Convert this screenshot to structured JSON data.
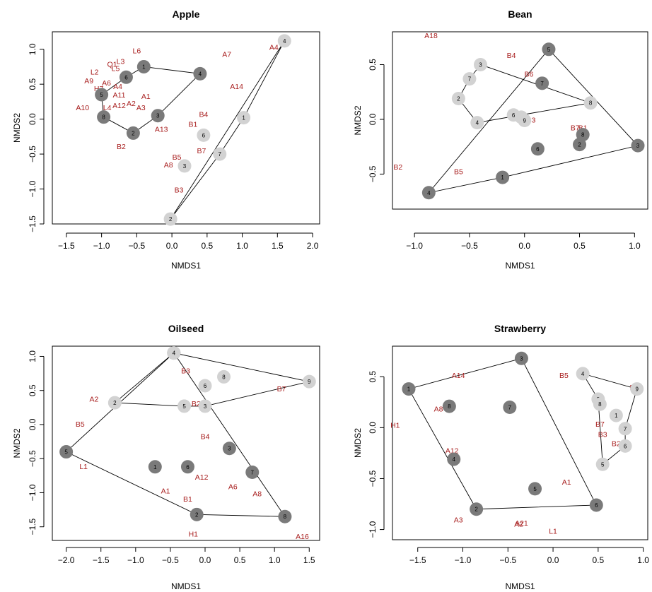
{
  "chart_data": [
    {
      "type": "scatter",
      "title": "Apple",
      "xlabel": "NMDS1",
      "ylabel": "NMDS2",
      "xlim": [
        -1.7,
        2.1
      ],
      "ylim": [
        -1.5,
        1.25
      ],
      "xticks": [
        {
          "v": -1.5,
          "t": "−1.5"
        },
        {
          "v": -1.0,
          "t": "−1.0"
        },
        {
          "v": -0.5,
          "t": "−0.5"
        },
        {
          "v": 0.0,
          "t": "0.0"
        },
        {
          "v": 0.5,
          "t": "0.5"
        },
        {
          "v": 1.0,
          "t": "1.0"
        },
        {
          "v": 1.5,
          "t": "1.5"
        },
        {
          "v": 2.0,
          "t": "2.0"
        }
      ],
      "yticks": [
        {
          "v": -1.5,
          "t": "−1.5"
        },
        {
          "v": -1.0,
          "t": "−1.0"
        },
        {
          "v": -0.5,
          "t": "−0.5"
        },
        {
          "v": 0.0,
          "t": "0.0"
        },
        {
          "v": 0.5,
          "t": "0.5"
        },
        {
          "v": 1.0,
          "t": "1.0"
        }
      ],
      "site_groups": [
        {
          "color": "#7a7a7a",
          "hull": [
            1,
            4,
            3,
            2,
            8,
            5,
            6
          ],
          "points": [
            {
              "id": "1",
              "x": -0.4,
              "y": 0.75
            },
            {
              "id": "2",
              "x": -0.55,
              "y": -0.2
            },
            {
              "id": "3",
              "x": -0.2,
              "y": 0.05
            },
            {
              "id": "4",
              "x": 0.4,
              "y": 0.65
            },
            {
              "id": "5",
              "x": -1.0,
              "y": 0.35
            },
            {
              "id": "6",
              "x": -0.65,
              "y": 0.6
            },
            {
              "id": "8",
              "x": -0.97,
              "y": 0.03
            }
          ]
        },
        {
          "color": "#d2d2d2",
          "hull": [
            4,
            1,
            7,
            2
          ],
          "points": [
            {
              "id": "1",
              "x": 1.02,
              "y": 0.02
            },
            {
              "id": "2",
              "x": -0.02,
              "y": -1.43
            },
            {
              "id": "3",
              "x": 0.18,
              "y": -0.67
            },
            {
              "id": "4",
              "x": 1.6,
              "y": 1.12
            },
            {
              "id": "6",
              "x": 0.45,
              "y": -0.23
            },
            {
              "id": "7",
              "x": 0.68,
              "y": -0.5
            }
          ]
        }
      ],
      "species": [
        {
          "label": "L6",
          "x": -0.5,
          "y": 0.97
        },
        {
          "label": "L3",
          "x": -0.73,
          "y": 0.82
        },
        {
          "label": "Q1",
          "x": -0.85,
          "y": 0.78
        },
        {
          "label": "L5",
          "x": -0.8,
          "y": 0.72
        },
        {
          "label": "L2",
          "x": -1.1,
          "y": 0.67
        },
        {
          "label": "A9",
          "x": -1.18,
          "y": 0.54
        },
        {
          "label": "A6",
          "x": -0.93,
          "y": 0.51
        },
        {
          "label": "A4",
          "x": -0.77,
          "y": 0.46
        },
        {
          "label": "H7",
          "x": -1.04,
          "y": 0.43
        },
        {
          "label": "A11",
          "x": -0.75,
          "y": 0.34
        },
        {
          "label": "A1",
          "x": -0.37,
          "y": 0.32
        },
        {
          "label": "A10",
          "x": -1.27,
          "y": 0.16
        },
        {
          "label": "L4",
          "x": -0.92,
          "y": 0.16
        },
        {
          "label": "A12",
          "x": -0.75,
          "y": 0.19
        },
        {
          "label": "A2",
          "x": -0.58,
          "y": 0.22
        },
        {
          "label": "A3",
          "x": -0.44,
          "y": 0.16
        },
        {
          "label": "A13",
          "x": -0.15,
          "y": -0.15
        },
        {
          "label": "B2",
          "x": -0.72,
          "y": -0.4
        },
        {
          "label": "B4",
          "x": 0.45,
          "y": 0.06
        },
        {
          "label": "B1",
          "x": 0.3,
          "y": -0.08
        },
        {
          "label": "A7",
          "x": 0.78,
          "y": 0.92
        },
        {
          "label": "A14",
          "x": 0.92,
          "y": 0.46
        },
        {
          "label": "A4",
          "x": 1.45,
          "y": 1.02
        },
        {
          "label": "B5",
          "x": 0.07,
          "y": -0.55
        },
        {
          "label": "B7",
          "x": 0.42,
          "y": -0.46
        },
        {
          "label": "A8",
          "x": -0.05,
          "y": -0.66
        },
        {
          "label": "B3",
          "x": 0.1,
          "y": -1.02
        }
      ]
    },
    {
      "type": "scatter",
      "title": "Bean",
      "xlabel": "NMDS1",
      "ylabel": "NMDS2",
      "xlim": [
        -1.2,
        1.12
      ],
      "ylim": [
        -0.82,
        0.8
      ],
      "xticks": [
        {
          "v": -1.0,
          "t": "−1.0"
        },
        {
          "v": -0.5,
          "t": "−0.5"
        },
        {
          "v": 0.0,
          "t": "0.0"
        },
        {
          "v": 0.5,
          "t": "0.5"
        },
        {
          "v": 1.0,
          "t": "1.0"
        }
      ],
      "yticks": [
        {
          "v": -0.5,
          "t": "−0.5"
        },
        {
          "v": 0.0,
          "t": "0.0"
        },
        {
          "v": 0.5,
          "t": "0.5"
        }
      ],
      "site_groups": [
        {
          "color": "#7a7a7a",
          "hull": [
            4,
            5,
            3,
            1
          ],
          "points": [
            {
              "id": "1",
              "x": -0.2,
              "y": -0.53
            },
            {
              "id": "2",
              "x": 0.5,
              "y": -0.23
            },
            {
              "id": "3",
              "x": 1.03,
              "y": -0.24
            },
            {
              "id": "4",
              "x": -0.87,
              "y": -0.67
            },
            {
              "id": "5",
              "x": 0.22,
              "y": 0.64
            },
            {
              "id": "6",
              "x": 0.12,
              "y": -0.27
            },
            {
              "id": "7",
              "x": 0.16,
              "y": 0.33
            },
            {
              "id": "8",
              "x": 0.53,
              "y": -0.14
            }
          ]
        },
        {
          "color": "#d2d2d2",
          "hull": [
            3,
            8,
            4,
            2,
            7
          ],
          "points": [
            {
              "id": "1",
              "x": -0.03,
              "y": 0.02
            },
            {
              "id": "2",
              "x": -0.6,
              "y": 0.19
            },
            {
              "id": "3",
              "x": -0.4,
              "y": 0.5
            },
            {
              "id": "4",
              "x": -0.43,
              "y": -0.03
            },
            {
              "id": "6",
              "x": -0.1,
              "y": 0.04
            },
            {
              "id": "7",
              "x": -0.5,
              "y": 0.37
            },
            {
              "id": "8",
              "x": 0.6,
              "y": 0.15
            },
            {
              "id": "9",
              "x": 0.0,
              "y": -0.01
            }
          ]
        }
      ],
      "species": [
        {
          "label": "A18",
          "x": -0.85,
          "y": 0.76
        },
        {
          "label": "B4",
          "x": -0.12,
          "y": 0.58
        },
        {
          "label": "B6",
          "x": 0.04,
          "y": 0.41
        },
        {
          "label": "B3",
          "x": 0.06,
          "y": -0.01
        },
        {
          "label": "B7",
          "x": 0.46,
          "y": -0.08
        },
        {
          "label": "B1",
          "x": 0.53,
          "y": -0.08
        },
        {
          "label": "B2",
          "x": -1.15,
          "y": -0.44
        },
        {
          "label": "B5",
          "x": -0.6,
          "y": -0.48
        }
      ]
    },
    {
      "type": "scatter",
      "title": "Oilseed",
      "xlabel": "NMDS1",
      "ylabel": "NMDS2",
      "xlim": [
        -2.2,
        1.65
      ],
      "ylim": [
        -1.7,
        1.15
      ],
      "xticks": [
        {
          "v": -2.0,
          "t": "−2.0"
        },
        {
          "v": -1.5,
          "t": "−1.5"
        },
        {
          "v": -1.0,
          "t": "−1.0"
        },
        {
          "v": -0.5,
          "t": "−0.5"
        },
        {
          "v": 0.0,
          "t": "0.0"
        },
        {
          "v": 0.5,
          "t": "0.5"
        },
        {
          "v": 1.0,
          "t": "1.0"
        },
        {
          "v": 1.5,
          "t": "1.5"
        }
      ],
      "yticks": [
        {
          "v": -1.5,
          "t": "−1.5"
        },
        {
          "v": -1.0,
          "t": "−1.0"
        },
        {
          "v": -0.5,
          "t": "−0.5"
        },
        {
          "v": 0.0,
          "t": "0.0"
        },
        {
          "v": 0.5,
          "t": "0.5"
        },
        {
          "v": 1.0,
          "t": "1.0"
        }
      ],
      "site_groups": [
        {
          "color": "#7a7a7a",
          "hull": [
            4,
            8,
            2,
            5
          ],
          "points": [
            {
              "id": "1",
              "x": -0.72,
              "y": -0.62
            },
            {
              "id": "2",
              "x": -0.12,
              "y": -1.32
            },
            {
              "id": "3",
              "x": 0.35,
              "y": -0.35
            },
            {
              "id": "4",
              "x": -0.45,
              "y": 1.05
            },
            {
              "id": "5",
              "x": -2.0,
              "y": -0.4
            },
            {
              "id": "6",
              "x": -0.25,
              "y": -0.62
            },
            {
              "id": "7",
              "x": 0.68,
              "y": -0.7
            },
            {
              "id": "8",
              "x": 1.15,
              "y": -1.35
            }
          ]
        },
        {
          "color": "#d2d2d2",
          "hull": [
            4,
            9,
            3,
            5,
            2
          ],
          "points": [
            {
              "id": "2",
              "x": -1.3,
              "y": 0.32
            },
            {
              "id": "3",
              "x": 0.0,
              "y": 0.27
            },
            {
              "id": "4",
              "x": -0.45,
              "y": 1.05
            },
            {
              "id": "5",
              "x": -0.3,
              "y": 0.27
            },
            {
              "id": "6",
              "x": 0.0,
              "y": 0.57
            },
            {
              "id": "8",
              "x": 0.27,
              "y": 0.7
            },
            {
              "id": "9",
              "x": 1.5,
              "y": 0.63
            }
          ]
        }
      ],
      "species": [
        {
          "label": "B3",
          "x": -0.28,
          "y": 0.78
        },
        {
          "label": "A2",
          "x": -1.6,
          "y": 0.37
        },
        {
          "label": "B2",
          "x": -0.13,
          "y": 0.3
        },
        {
          "label": "B7",
          "x": 1.1,
          "y": 0.52
        },
        {
          "label": "B5",
          "x": -1.8,
          "y": 0.0
        },
        {
          "label": "B4",
          "x": 0.0,
          "y": -0.18
        },
        {
          "label": "L1",
          "x": -1.75,
          "y": -0.62
        },
        {
          "label": "A12",
          "x": -0.05,
          "y": -0.78
        },
        {
          "label": "A6",
          "x": 0.4,
          "y": -0.92
        },
        {
          "label": "A8",
          "x": 0.75,
          "y": -1.02
        },
        {
          "label": "A1",
          "x": -0.57,
          "y": -0.98
        },
        {
          "label": "B1",
          "x": -0.25,
          "y": -1.1
        },
        {
          "label": "H1",
          "x": -0.17,
          "y": -1.61
        },
        {
          "label": "A16",
          "x": 1.4,
          "y": -1.65
        }
      ]
    },
    {
      "type": "scatter",
      "title": "Strawberry",
      "xlabel": "NMDS1",
      "ylabel": "NMDS2",
      "xlim": [
        -1.78,
        1.05
      ],
      "ylim": [
        -1.1,
        0.8
      ],
      "xticks": [
        {
          "v": -1.5,
          "t": "−1.5"
        },
        {
          "v": -1.0,
          "t": "−1.0"
        },
        {
          "v": -0.5,
          "t": "−0.5"
        },
        {
          "v": 0.0,
          "t": "0.0"
        },
        {
          "v": 0.5,
          "t": "0.5"
        },
        {
          "v": 1.0,
          "t": "1.0"
        }
      ],
      "yticks": [
        {
          "v": -1.0,
          "t": "−1.0"
        },
        {
          "v": -0.5,
          "t": "−0.5"
        },
        {
          "v": 0.0,
          "t": "0.0"
        },
        {
          "v": 0.5,
          "t": "0.5"
        }
      ],
      "site_groups": [
        {
          "color": "#7a7a7a",
          "hull": [
            1,
            3,
            6,
            2
          ],
          "points": [
            {
              "id": "1",
              "x": -1.6,
              "y": 0.38
            },
            {
              "id": "2",
              "x": -0.85,
              "y": -0.8
            },
            {
              "id": "3",
              "x": -0.35,
              "y": 0.68
            },
            {
              "id": "4",
              "x": -1.1,
              "y": -0.31
            },
            {
              "id": "5",
              "x": -0.2,
              "y": -0.6
            },
            {
              "id": "6",
              "x": 0.48,
              "y": -0.76
            },
            {
              "id": "7",
              "x": -0.48,
              "y": 0.2
            },
            {
              "id": "8",
              "x": -1.15,
              "y": 0.21
            }
          ]
        },
        {
          "color": "#d2d2d2",
          "hull": [
            4,
            3,
            5,
            6,
            7,
            9
          ],
          "points": [
            {
              "id": "1",
              "x": 0.7,
              "y": 0.12
            },
            {
              "id": "3",
              "x": 0.5,
              "y": 0.28
            },
            {
              "id": "4",
              "x": 0.33,
              "y": 0.53
            },
            {
              "id": "5",
              "x": 0.55,
              "y": -0.36
            },
            {
              "id": "6",
              "x": 0.8,
              "y": -0.18
            },
            {
              "id": "7",
              "x": 0.8,
              "y": -0.01
            },
            {
              "id": "8",
              "x": 0.52,
              "y": 0.23
            },
            {
              "id": "9",
              "x": 0.93,
              "y": 0.38
            }
          ]
        }
      ],
      "species": [
        {
          "label": "A14",
          "x": -1.05,
          "y": 0.51
        },
        {
          "label": "B5",
          "x": 0.12,
          "y": 0.51
        },
        {
          "label": "B4",
          "x": 0.9,
          "y": 0.39
        },
        {
          "label": "A8",
          "x": -1.27,
          "y": 0.18
        },
        {
          "label": "H1",
          "x": -1.75,
          "y": 0.02
        },
        {
          "label": "B7",
          "x": 0.52,
          "y": 0.03
        },
        {
          "label": "B3",
          "x": 0.55,
          "y": -0.07
        },
        {
          "label": "B2",
          "x": 0.7,
          "y": -0.16
        },
        {
          "label": "A12",
          "x": -1.12,
          "y": -0.23
        },
        {
          "label": "A1",
          "x": 0.15,
          "y": -0.54
        },
        {
          "label": "A3",
          "x": -1.05,
          "y": -0.91
        },
        {
          "label": "A21",
          "x": -0.35,
          "y": -0.94
        },
        {
          "label": "A2",
          "x": -0.38,
          "y": -0.95
        },
        {
          "label": "L1",
          "x": 0.0,
          "y": -1.02
        }
      ]
    }
  ]
}
